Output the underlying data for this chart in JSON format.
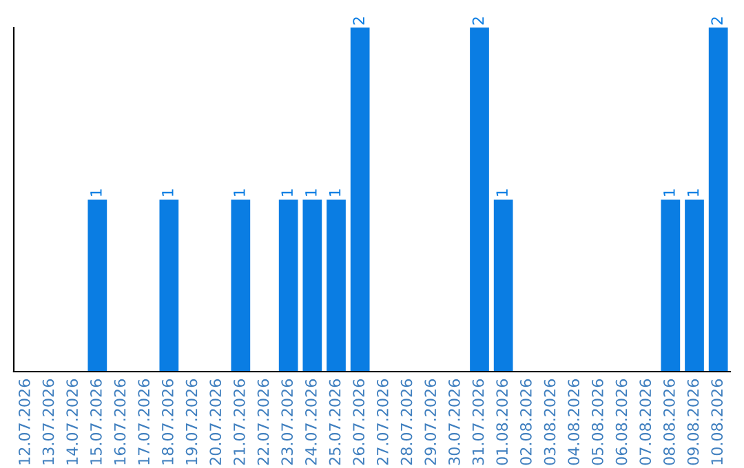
{
  "chart_data": {
    "type": "bar",
    "categories": [
      "12.07.2026",
      "13.07.2026",
      "14.07.2026",
      "15.07.2026",
      "16.07.2026",
      "17.07.2026",
      "18.07.2026",
      "19.07.2026",
      "20.07.2026",
      "21.07.2026",
      "22.07.2026",
      "23.07.2026",
      "24.07.2026",
      "25.07.2026",
      "26.07.2026",
      "27.07.2026",
      "28.07.2026",
      "29.07.2026",
      "30.07.2026",
      "31.07.2026",
      "01.08.2026",
      "02.08.2026",
      "03.08.2026",
      "04.08.2026",
      "05.08.2026",
      "06.08.2026",
      "07.08.2026",
      "08.08.2026",
      "09.08.2026",
      "10.08.2026"
    ],
    "values": [
      0,
      0,
      0,
      1,
      0,
      0,
      1,
      0,
      0,
      1,
      0,
      1,
      1,
      1,
      2,
      0,
      0,
      0,
      0,
      2,
      1,
      0,
      0,
      0,
      0,
      0,
      0,
      1,
      1,
      2
    ],
    "value_labels": [
      null,
      null,
      null,
      "1",
      null,
      null,
      "1",
      null,
      null,
      "1",
      null,
      "1",
      "1",
      "1",
      "2",
      null,
      null,
      null,
      null,
      "2",
      "1",
      null,
      null,
      null,
      null,
      null,
      null,
      "1",
      "1",
      "2"
    ],
    "color": "#0a7de3",
    "tick_labels": "x",
    "grid": false
  }
}
